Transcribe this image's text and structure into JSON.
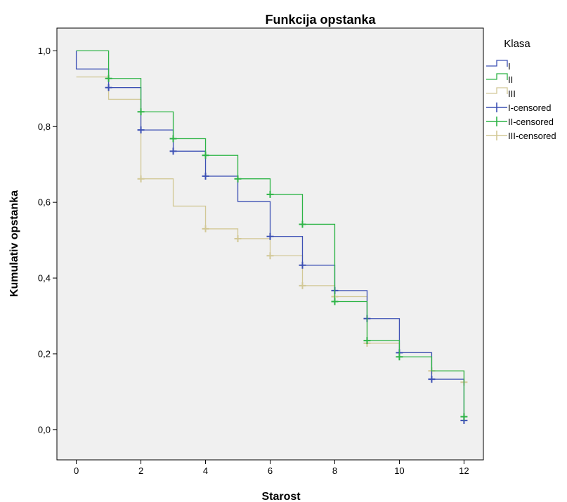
{
  "chart_data": {
    "type": "line",
    "step": true,
    "title": "Funkcija opstanka",
    "xlabel": "Starost",
    "ylabel": "Kumulativ opstanka",
    "xlim": [
      -0.6,
      12.6
    ],
    "ylim": [
      -0.08,
      1.06
    ],
    "x_ticks": [
      0,
      2,
      4,
      6,
      8,
      10,
      12
    ],
    "y_ticks": [
      0.0,
      0.2,
      0.4,
      0.6,
      0.8,
      1.0
    ],
    "x_tick_labels": [
      "0",
      "2",
      "4",
      "6",
      "8",
      "10",
      "12"
    ],
    "y_tick_labels": [
      "0,0",
      "0,2",
      "0,4",
      "0,6",
      "0,8",
      "1,0"
    ],
    "grid": false,
    "plot_background": "#f0f0f0",
    "legend": {
      "title": "Klasa",
      "position": "right",
      "entries": [
        "I",
        "II",
        "III",
        "I-censored",
        "II-censored",
        "III-censored"
      ]
    },
    "series": [
      {
        "name": "I",
        "color": "#3c50b4",
        "steps": [
          [
            0,
            1.0
          ],
          [
            0,
            0.952
          ],
          [
            1,
            0.903
          ],
          [
            2,
            0.791
          ],
          [
            3,
            0.735
          ],
          [
            4,
            0.669
          ],
          [
            5,
            0.602
          ],
          [
            6,
            0.51
          ],
          [
            7,
            0.434
          ],
          [
            8,
            0.367
          ],
          [
            9,
            0.293
          ],
          [
            10,
            0.203
          ],
          [
            11,
            0.133
          ],
          [
            12,
            0.024
          ]
        ],
        "censored": [
          [
            1,
            0.903
          ],
          [
            2,
            0.791
          ],
          [
            3,
            0.735
          ],
          [
            4,
            0.669
          ],
          [
            6,
            0.51
          ],
          [
            7,
            0.434
          ],
          [
            8,
            0.367
          ],
          [
            9,
            0.293
          ],
          [
            10,
            0.203
          ],
          [
            11,
            0.133
          ],
          [
            12,
            0.024
          ]
        ]
      },
      {
        "name": "II",
        "color": "#2db446",
        "steps": [
          [
            0,
            1.0
          ],
          [
            1,
            0.927
          ],
          [
            2,
            0.839
          ],
          [
            3,
            0.768
          ],
          [
            4,
            0.724
          ],
          [
            5,
            0.662
          ],
          [
            6,
            0.621
          ],
          [
            7,
            0.542
          ],
          [
            8,
            0.338
          ],
          [
            9,
            0.235
          ],
          [
            10,
            0.192
          ],
          [
            11,
            0.155
          ],
          [
            12,
            0.034
          ]
        ],
        "censored": [
          [
            1,
            0.927
          ],
          [
            2,
            0.839
          ],
          [
            3,
            0.768
          ],
          [
            4,
            0.724
          ],
          [
            5,
            0.662
          ],
          [
            6,
            0.621
          ],
          [
            7,
            0.542
          ],
          [
            8,
            0.338
          ],
          [
            9,
            0.235
          ],
          [
            10,
            0.192
          ],
          [
            12,
            0.034
          ]
        ]
      },
      {
        "name": "III",
        "color": "#d2c896",
        "steps": [
          [
            0,
            0.931
          ],
          [
            1,
            0.872
          ],
          [
            2,
            0.662
          ],
          [
            3,
            0.59
          ],
          [
            4,
            0.53
          ],
          [
            5,
            0.504
          ],
          [
            6,
            0.459
          ],
          [
            7,
            0.38
          ],
          [
            8,
            0.351
          ],
          [
            9,
            0.228
          ],
          [
            10,
            0.203
          ],
          [
            11,
            0.155
          ],
          [
            12,
            0.125
          ]
        ],
        "censored": [
          [
            2,
            0.662
          ],
          [
            4,
            0.53
          ],
          [
            5,
            0.504
          ],
          [
            6,
            0.459
          ],
          [
            7,
            0.38
          ],
          [
            8,
            0.351
          ],
          [
            9,
            0.228
          ],
          [
            11,
            0.155
          ],
          [
            12,
            0.125
          ]
        ]
      }
    ]
  }
}
